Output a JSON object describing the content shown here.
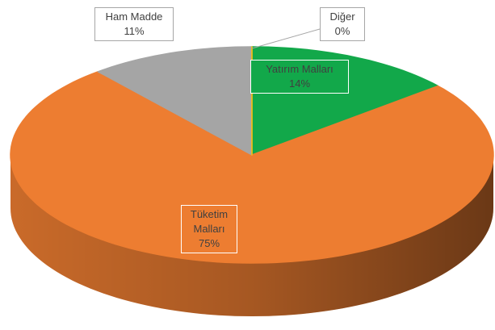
{
  "chart_data": {
    "type": "pie3d",
    "categories": [
      "Yatırım Malları",
      "Tüketim Malları",
      "Ham Madde",
      "Diğer"
    ],
    "values": [
      14,
      75,
      11,
      0
    ],
    "value_labels": [
      "14%",
      "75%",
      "11%",
      "0%"
    ],
    "colors": [
      "#12a84a",
      "#ed7d31",
      "#a5a5a5",
      "#ffc000"
    ]
  }
}
